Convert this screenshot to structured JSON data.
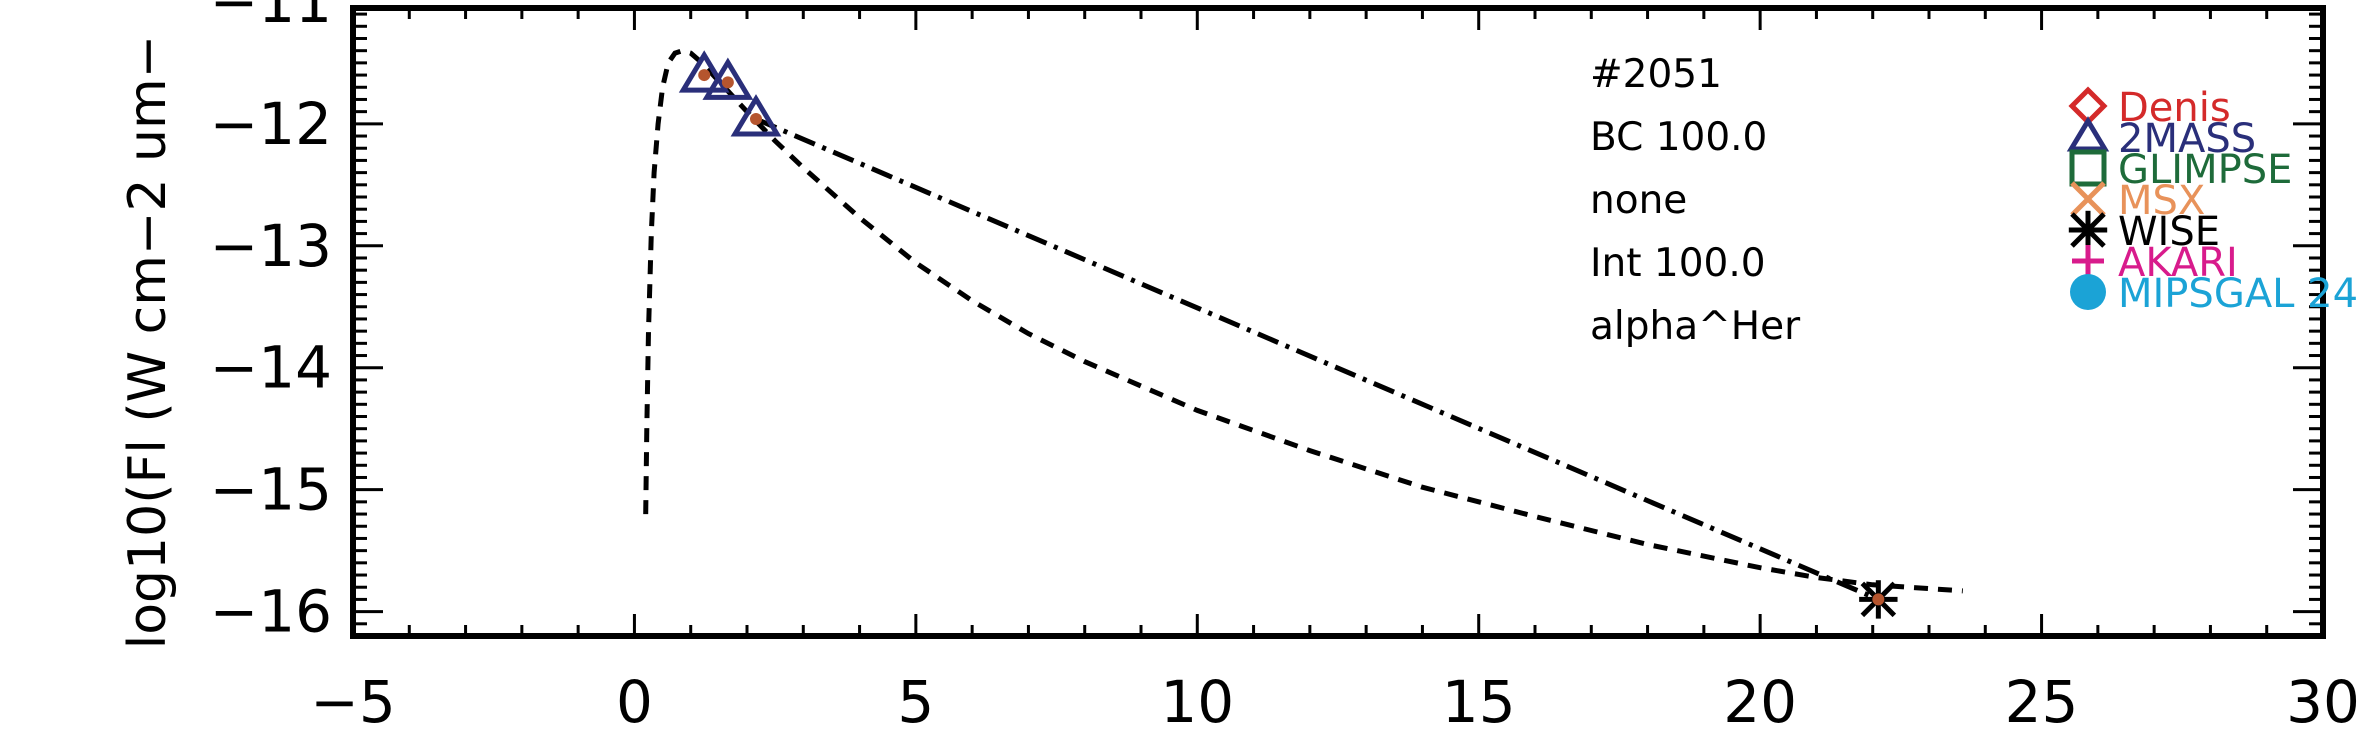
{
  "chart_data": {
    "type": "scatter",
    "title": "",
    "xlabel": "",
    "ylabel": "log10(Fl (W cm−2 um−",
    "xlim": [
      -5,
      30
    ],
    "ylim": [
      -16.2,
      -11.05
    ],
    "grid": false,
    "x_ticks": [
      -5,
      0,
      5,
      10,
      15,
      20,
      25,
      30
    ],
    "x_tick_labels": [
      "−5",
      "0",
      "5",
      "10",
      "15",
      "20",
      "25",
      "30"
    ],
    "y_ticks": [
      -11,
      -12,
      -13,
      -14,
      -15,
      -16
    ],
    "y_tick_labels": [
      "−11",
      "−12",
      "−13",
      "−14",
      "−15",
      "−16"
    ],
    "annotations": [
      "#2051",
      "BC 100.0",
      "none",
      "Int 100.0",
      "alpha^Her"
    ],
    "legend": {
      "position": "top-right",
      "entries": [
        {
          "label": "Denis",
          "marker": "diamond",
          "color": "#d42a2a"
        },
        {
          "label": "2MASS",
          "marker": "triangle",
          "color": "#2a2f7a"
        },
        {
          "label": "GLIMPSE",
          "marker": "square",
          "color": "#1e6b3a"
        },
        {
          "label": "MSX",
          "marker": "x",
          "color": "#e8925a"
        },
        {
          "label": "WISE",
          "marker": "asterisk",
          "color": "#000000"
        },
        {
          "label": "AKARI",
          "marker": "plus",
          "color": "#d81b8c"
        },
        {
          "label": "MIPSGAL 24",
          "marker": "circle",
          "color": "#1ba3d6"
        }
      ]
    },
    "series": [
      {
        "marker": "triangle",
        "color": "#2a2f7a",
        "points": [
          {
            "x": 1.24,
            "y": -11.6
          },
          {
            "x": 1.66,
            "y": -11.66
          },
          {
            "x": 2.16,
            "y": -11.96
          }
        ]
      },
      {
        "marker": "asterisk",
        "color": "#000000",
        "points": [
          {
            "x": 22.1,
            "y": -15.9
          }
        ]
      }
    ],
    "inner_points": {
      "color": "#b5552e",
      "points": [
        {
          "x": 1.24,
          "y": -11.6
        },
        {
          "x": 1.66,
          "y": -11.66
        },
        {
          "x": 2.16,
          "y": -11.96
        },
        {
          "x": 22.1,
          "y": -15.9
        }
      ]
    },
    "curves": [
      {
        "style": "dashed",
        "x": [
          0.2,
          0.22,
          0.25,
          0.3,
          0.35,
          0.42,
          0.5,
          0.6,
          0.72,
          0.85,
          1.0,
          1.2,
          1.5,
          2.0,
          2.5,
          3.0,
          4.0,
          5.0,
          6.0,
          7.0,
          8.0,
          10.0,
          12.0,
          14.0,
          16.0,
          18.0,
          20.0,
          21.0,
          22.0,
          23.6
        ],
        "y": [
          -15.2,
          -14.5,
          -13.7,
          -12.9,
          -12.4,
          -12.0,
          -11.7,
          -11.5,
          -11.42,
          -11.4,
          -11.42,
          -11.5,
          -11.65,
          -11.9,
          -12.14,
          -12.36,
          -12.77,
          -13.14,
          -13.45,
          -13.72,
          -13.95,
          -14.35,
          -14.68,
          -14.98,
          -15.22,
          -15.45,
          -15.64,
          -15.72,
          -15.78,
          -15.83
        ]
      },
      {
        "style": "dashdot",
        "x": [
          2.16,
          22.1
        ],
        "y": [
          -11.96,
          -15.9
        ]
      }
    ]
  }
}
